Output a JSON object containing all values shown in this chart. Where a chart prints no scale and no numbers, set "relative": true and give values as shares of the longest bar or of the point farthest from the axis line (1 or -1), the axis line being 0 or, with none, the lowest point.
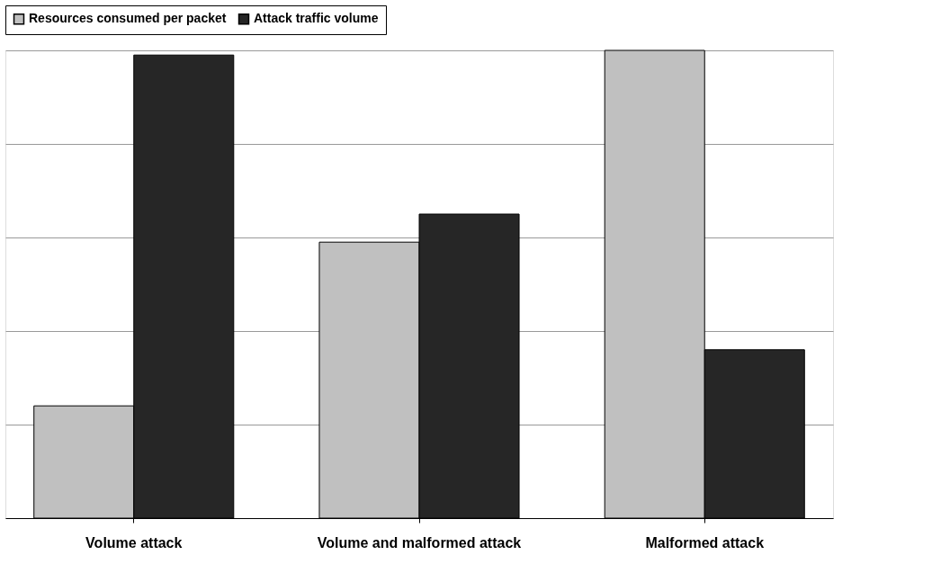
{
  "chart_data": {
    "type": "bar",
    "relative": true,
    "categories": [
      "Volume attack",
      "Volume and malformed attack",
      "Malformed attack"
    ],
    "series": [
      {
        "name": "Resources consumed per packet",
        "color": "#c0c0c0",
        "values": [
          0.24,
          0.59,
          1
        ]
      },
      {
        "name": "Attack traffic volume",
        "color": "#262626",
        "values": [
          0.99,
          0.65,
          0.36
        ]
      }
    ],
    "grid": "y",
    "legend": "top"
  }
}
